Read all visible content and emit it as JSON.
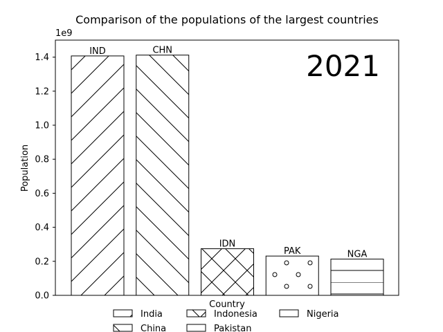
{
  "chart_data": {
    "type": "bar",
    "title": "Comparison of the populations of the largest countries",
    "xlabel": "Country",
    "ylabel": "Population",
    "offset_label": "1e9",
    "year_label": "2021",
    "ylim": [
      0,
      1.5
    ],
    "yticks": [
      0.0,
      0.2,
      0.4,
      0.6,
      0.8,
      1.0,
      1.2,
      1.4
    ],
    "ytick_labels": [
      "0.0",
      "0.2",
      "0.4",
      "0.6",
      "0.8",
      "1.0",
      "1.2",
      "1.4"
    ],
    "categories": [
      "IND",
      "CHN",
      "IDN",
      "PAK",
      "NGA"
    ],
    "values": [
      1.407,
      1.412,
      0.274,
      0.231,
      0.213
    ],
    "hatches": [
      "slash",
      "backslash",
      "cross",
      "dots",
      "horizontal"
    ],
    "legend": {
      "placement": "bottom-center",
      "entries": [
        "India",
        "China",
        "Indonesia",
        "Pakistan",
        "Nigeria"
      ]
    },
    "grid": false
  },
  "colors": {
    "bar_fill": "#ffffff",
    "edge": "#000000",
    "background": "#ffffff"
  }
}
